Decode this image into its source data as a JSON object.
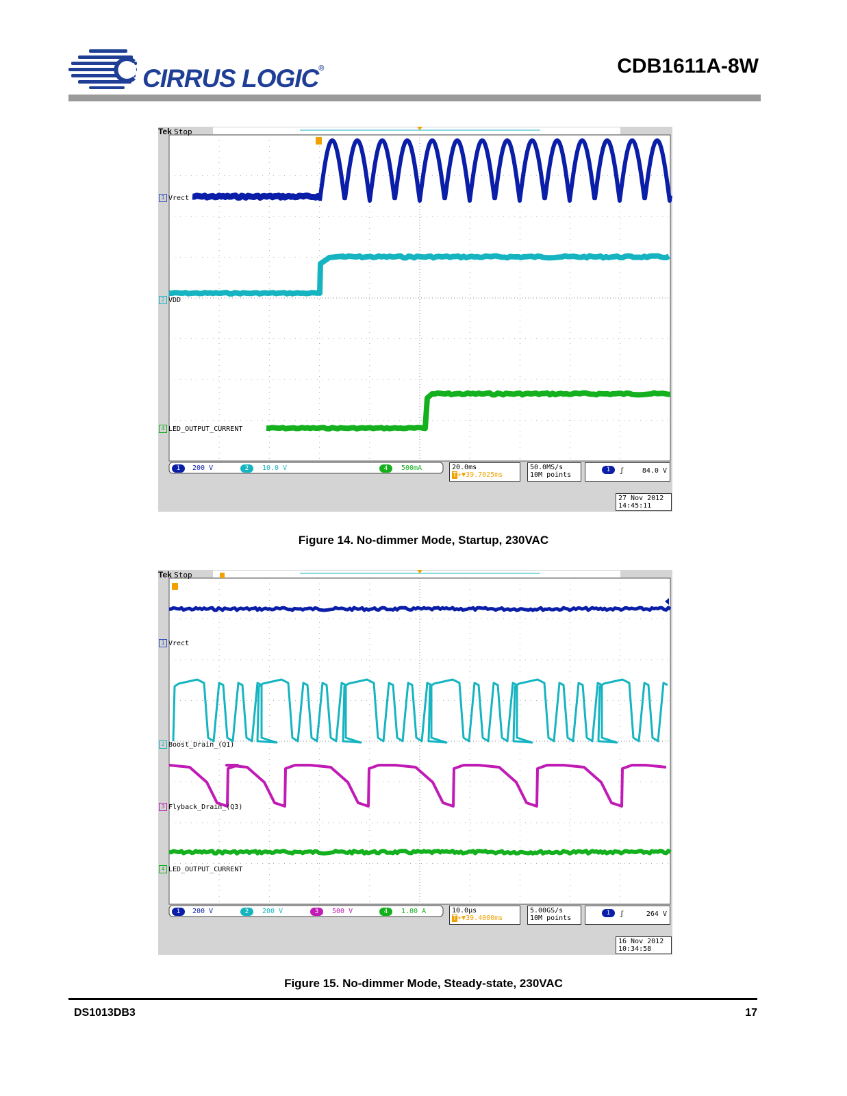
{
  "header": {
    "logo_text": "CIRRUS LOGIC",
    "logo_reg": "®",
    "doc_title": "CDB1611A-8W"
  },
  "colors": {
    "ch1": "#0a1ea8",
    "ch2": "#15b4c0",
    "ch3": "#c01bb4",
    "ch4": "#14b01e",
    "trigger": "#f0a000",
    "logo_blue": "#1f3f96"
  },
  "figures": [
    {
      "brand": "Tek",
      "state": "Stop",
      "channels": [
        {
          "num": "1",
          "label": "Vrect"
        },
        {
          "num": "2",
          "label": "VDD"
        },
        {
          "num": "4",
          "label": "LED_OUTPUT_CURRENT"
        }
      ],
      "status": {
        "ch1_scale": "200 V",
        "ch2_scale": "10.0 V",
        "ch4_scale": "500mA",
        "timebase": "20.0ms",
        "trigger_delay": "▼39.7025ms",
        "sample_rate": "50.0MS/s",
        "record_length": "10M points",
        "trigger_level": "84.0 V",
        "date": "27 Nov 2012",
        "time": "14:45:11"
      },
      "caption": "Figure 14.  No-dimmer Mode, Startup, 230VAC"
    },
    {
      "brand": "Tek",
      "state": "Stop",
      "channels": [
        {
          "num": "1",
          "label": "Vrect"
        },
        {
          "num": "2",
          "label": "Boost_Drain_(Q1)"
        },
        {
          "num": "3",
          "label": "Flyback_Drain_(Q3)"
        },
        {
          "num": "4",
          "label": "LED_OUTPUT_CURRENT"
        }
      ],
      "status": {
        "ch1_scale": "200 V",
        "ch2_scale": "200 V",
        "ch3_scale": "500 V",
        "ch4_scale": "1.00 A",
        "timebase": "10.0µs",
        "trigger_delay": "▼39.4000ms",
        "sample_rate": "5.00GS/s",
        "record_length": "10M points",
        "trigger_level": "264 V",
        "date": "16 Nov 2012",
        "time": "10:34:58"
      },
      "caption": "Figure 15.  No-dimmer Mode, Steady-state, 230VAC"
    }
  ],
  "footer": {
    "doc_id": "DS1013DB3",
    "page_number": "17"
  }
}
